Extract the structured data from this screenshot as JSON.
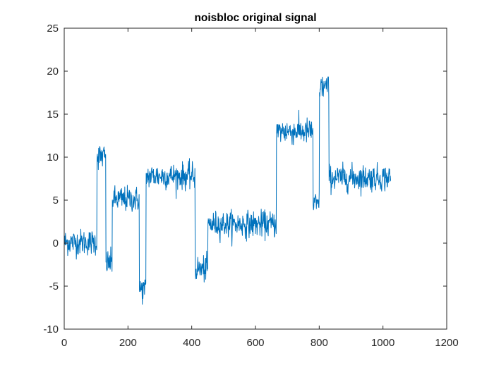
{
  "chart_data": {
    "type": "line",
    "title": "noisbloc original signal",
    "xlabel": "",
    "ylabel": "",
    "xlim": [
      0,
      1200
    ],
    "ylim": [
      -10,
      25
    ],
    "xticks": [
      0,
      200,
      400,
      600,
      800,
      1000,
      1200
    ],
    "yticks": [
      -10,
      -5,
      0,
      5,
      10,
      15,
      20,
      25
    ],
    "xtick_labels": [
      "0",
      "200",
      "400",
      "600",
      "800",
      "1000",
      "1200"
    ],
    "ytick_labels": [
      "-10",
      "-5",
      "0",
      "5",
      "10",
      "15",
      "20",
      "25"
    ],
    "grid": false,
    "line_color": "#0072BD",
    "series": [
      {
        "n": 1024,
        "segments": [
          {
            "x": [
              1,
              102
            ],
            "level": 0.1
          },
          {
            "x": [
              103,
              130
            ],
            "level": 10.1
          },
          {
            "x": [
              131,
              150
            ],
            "level": -2.3
          },
          {
            "x": [
              151,
              235
            ],
            "level": 5.1
          },
          {
            "x": [
              236,
              256
            ],
            "level": -5.4
          },
          {
            "x": [
              257,
              410
            ],
            "level": 7.8
          },
          {
            "x": [
              411,
              450
            ],
            "level": -3.0
          },
          {
            "x": [
              451,
              665
            ],
            "level": 2.2
          },
          {
            "x": [
              666,
              780
            ],
            "level": 13.0
          },
          {
            "x": [
              781,
              800
            ],
            "level": 4.5
          },
          {
            "x": [
              801,
              830
            ],
            "level": 18.2
          },
          {
            "x": [
              831,
              1024
            ],
            "level": 7.6
          }
        ],
        "noise_amplitude": 1.0
      }
    ]
  }
}
